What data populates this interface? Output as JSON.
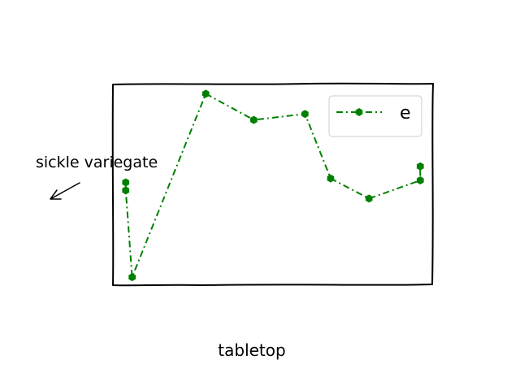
{
  "chart_data": {
    "type": "line",
    "title": "",
    "xlabel": "tabletop",
    "ylabel": "",
    "annotation": "sickle variegate",
    "legend": {
      "placement": "top-right",
      "entries": [
        "e"
      ]
    },
    "grid": false,
    "xlim": [
      0,
      10
    ],
    "ylim": [
      0,
      10
    ],
    "series": [
      {
        "name": "e",
        "color": "#008000",
        "marker": "hexagon",
        "linestyle": "dash-dot",
        "x": [
          0.4,
          0.4,
          0.6,
          2.9,
          4.4,
          6.0,
          6.8,
          8.0,
          9.6,
          9.6
        ],
        "y": [
          5.1,
          4.7,
          0.4,
          9.5,
          8.2,
          8.5,
          5.3,
          4.3,
          5.2,
          5.9
        ]
      }
    ]
  }
}
